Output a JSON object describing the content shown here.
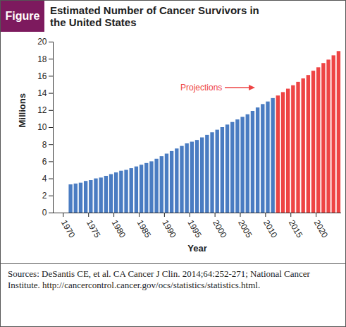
{
  "chart_data": {
    "type": "bar",
    "label": "Figure",
    "title": "Estimated Number of Cancer Survivors in the United States",
    "x_label": "Year",
    "y_label": "Millions",
    "annotation": "Projections",
    "caption": "Sources: DeSantis CE, et al. CA Cancer J Clin. 2014;64:252-271; National Cancer Institute. http://cancercontrol.cancer.gov/ocs/statistics/statistics.html.",
    "series": [
      {
        "color": "#4a7cc2",
        "x": [
          1971,
          1972,
          1973,
          1974,
          1975,
          1976,
          1977,
          1978,
          1979,
          1980,
          1981,
          1982,
          1983,
          1984,
          1985,
          1986,
          1987,
          1988,
          1989,
          1990,
          1991,
          1992,
          1993,
          1994,
          1995,
          1996,
          1997,
          1998,
          1999,
          2000,
          2001,
          2002,
          2003,
          2004,
          2005,
          2006,
          2007,
          2008,
          2009,
          2010,
          2011
        ],
        "values": [
          3.3,
          3.4,
          3.5,
          3.7,
          3.8,
          4.0,
          4.1,
          4.3,
          4.5,
          4.7,
          4.9,
          5.0,
          5.2,
          5.4,
          5.6,
          5.8,
          6.0,
          6.3,
          6.6,
          6.9,
          7.2,
          7.5,
          7.8,
          8.1,
          8.3,
          8.5,
          8.8,
          9.1,
          9.4,
          9.7,
          10.0,
          10.3,
          10.6,
          10.9,
          11.2,
          11.5,
          11.9,
          12.3,
          12.7,
          13.0,
          13.4
        ]
      },
      {
        "color": "#ee4444",
        "x": [
          2012,
          2013,
          2014,
          2015,
          2016,
          2017,
          2018,
          2019,
          2020,
          2021,
          2022,
          2023,
          2024
        ],
        "values": [
          13.7,
          14.1,
          14.5,
          14.9,
          15.3,
          15.7,
          16.1,
          16.6,
          17.0,
          17.5,
          17.9,
          18.4,
          18.9
        ]
      }
    ],
    "xlim": [
      1968,
      2025
    ],
    "xticks": [
      1970,
      1975,
      1980,
      1985,
      1990,
      1995,
      2000,
      2005,
      2010,
      2015,
      2020
    ],
    "ylim": [
      0,
      20
    ],
    "yticks": [
      0,
      2,
      4,
      6,
      8,
      10,
      12,
      14,
      16,
      18,
      20
    ],
    "grid": false
  }
}
